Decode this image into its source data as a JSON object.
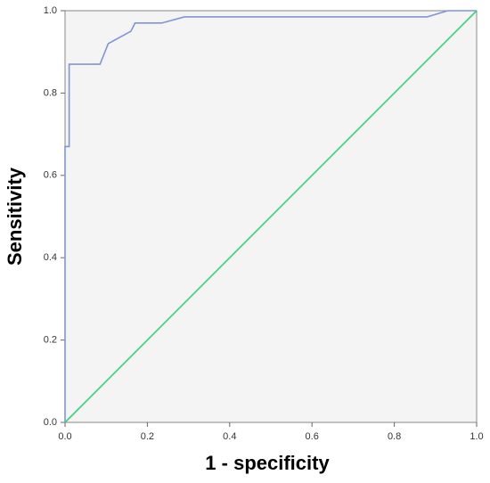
{
  "chart_data": {
    "type": "line",
    "xlabel": "1 - specificity",
    "ylabel": "Sensitivity",
    "xlim": [
      0,
      1
    ],
    "ylim": [
      0,
      1
    ],
    "xticks": [
      {
        "value": 0,
        "label": "0.0"
      },
      0.2,
      0.4,
      0.6,
      0.8,
      {
        "value": 1,
        "label": "1.0"
      }
    ],
    "yticks": [
      {
        "value": 0,
        "label": "0.0"
      },
      0.2,
      0.4,
      0.6,
      0.8,
      {
        "value": 1,
        "label": "1.0"
      }
    ],
    "series": [
      {
        "color": "#8095d8",
        "x": [
          0,
          0,
          0.01,
          0.01,
          0.085,
          0.105,
          0.16,
          0.17,
          0.235,
          0.29,
          0.88,
          0.93,
          1.0
        ],
        "values": [
          0,
          0.67,
          0.67,
          0.87,
          0.87,
          0.92,
          0.95,
          0.97,
          0.97,
          0.985,
          0.985,
          1.0,
          1.0
        ]
      },
      {
        "color": "#3ccf7a",
        "x": [
          0,
          1
        ],
        "values": [
          0,
          1
        ]
      }
    ]
  }
}
